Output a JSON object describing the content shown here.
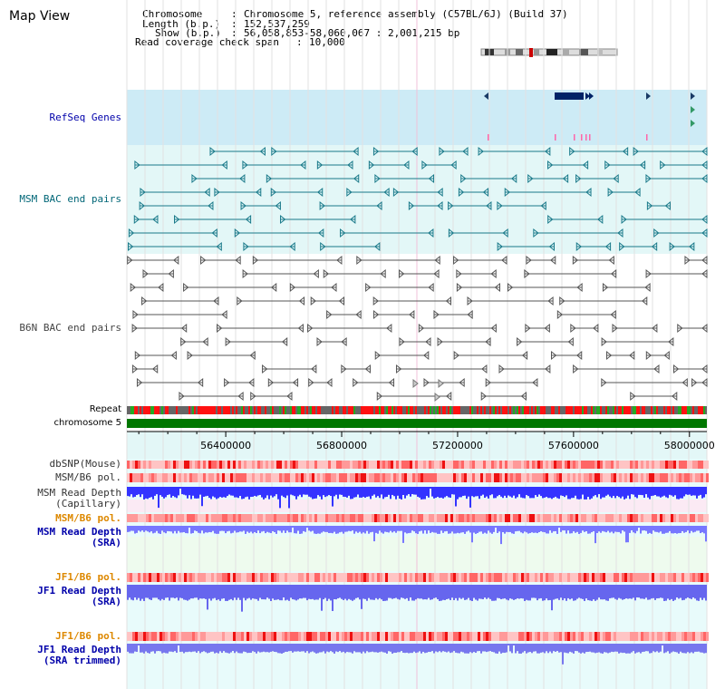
{
  "page_title": "Map View",
  "header": {
    "chromosome_label": "Chromosome",
    "chromosome_value": "Chromosome 5, reference assembly (C57BL/6J) (Build 37)",
    "length_label": "Length (b.p.)",
    "length_value": "152,537,259",
    "show_label": "Show (b.p.)",
    "show_value": "56,058,853-58,060,067 : 2,001,215 bp",
    "coverage_label": "Read coverage check span",
    "coverage_value": "10,000"
  },
  "tracks": {
    "refseq": "RefSeq Genes",
    "msm_bac": "MSM BAC end pairs",
    "b6n_bac": "B6N BAC end pairs",
    "repeat": "Repeat",
    "chromosome": "chromosome 5",
    "dbsnp": "dbSNP(Mouse)",
    "msm_b6_pol": "MSM/B6 pol.",
    "msm_depth_cap_1": "MSM Read Depth",
    "msm_depth_cap_2": "(Capillary)",
    "msm_b6_pol_2": "MSM/B6 pol.",
    "msm_depth_sra_1": "MSM Read Depth",
    "msm_depth_sra_2": "(SRA)",
    "jf1_pol": "JF1/B6 pol.",
    "jf1_depth_1": "JF1 Read Depth",
    "jf1_depth_2": "(SRA)",
    "jf1_pol_2": "JF1/B6 pol.",
    "jf1_trim_1": "JF1 Read Depth",
    "jf1_trim_2": "(SRA trimmed)"
  },
  "axis": {
    "ticks": [
      "56400000",
      "56800000",
      "57200000",
      "57600000",
      "58000000"
    ],
    "values": [
      56400000,
      56800000,
      57200000,
      57600000,
      58000000
    ],
    "start": 56058853,
    "end": 58060067
  },
  "colors": {
    "label_blue": "#0000aa",
    "label_teal": "#006677",
    "label_gray": "#444444",
    "label_orange": "#dd8800",
    "refseq_bg": "#cdebf6",
    "msm_bg": "#e3f7f7",
    "chrom_green": "#007700",
    "depth_blue": "#3333ff",
    "depth_light": "#7777ff"
  }
}
